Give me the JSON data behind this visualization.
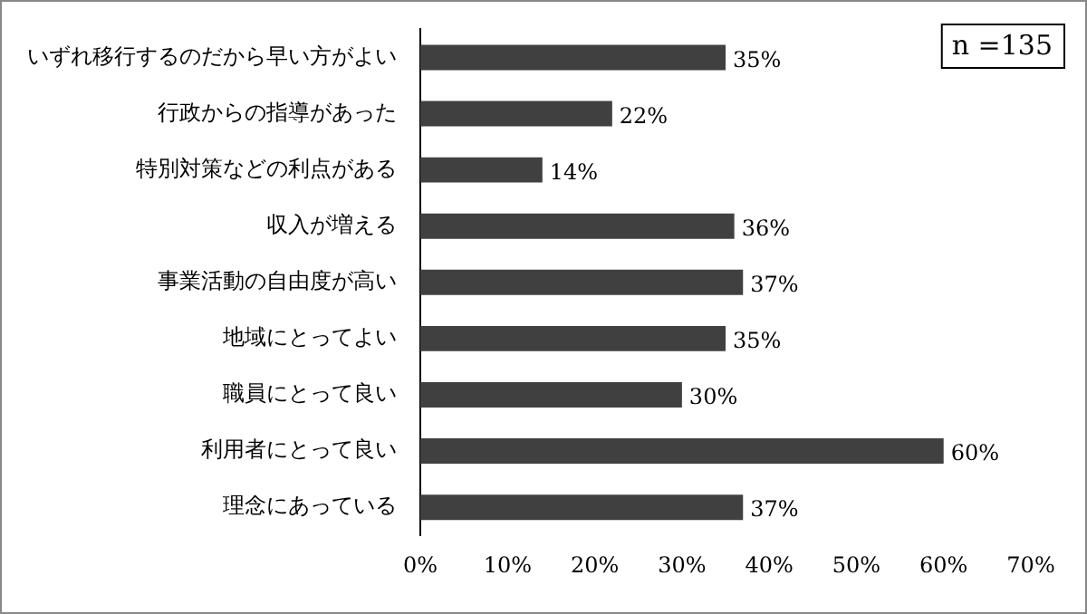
{
  "chart_data": {
    "type": "bar",
    "orientation": "horizontal",
    "categories": [
      "いずれ移行するのだから早い方がよい",
      "行政からの指導があった",
      "特別対策などの利点がある",
      "収入が増える",
      "事業活動の自由度が高い",
      "地域にとってよい",
      "職員にとって良い",
      "利用者にとって良い",
      "理念にあっている"
    ],
    "values": [
      35,
      22,
      14,
      36,
      37,
      35,
      30,
      60,
      37
    ],
    "value_labels": [
      "35%",
      "22%",
      "14%",
      "36%",
      "37%",
      "35%",
      "30%",
      "60%",
      "37%"
    ],
    "color": "#404040",
    "xlim": [
      0,
      70
    ],
    "xticks": [
      {
        "value": 0,
        "label": "0%"
      },
      {
        "value": 10,
        "label": "10%"
      },
      {
        "value": 20,
        "label": "20%"
      },
      {
        "value": 30,
        "label": "30%"
      },
      {
        "value": 40,
        "label": "40%"
      },
      {
        "value": 50,
        "label": "50%"
      },
      {
        "value": 60,
        "label": "60%"
      },
      {
        "value": 70,
        "label": "70%"
      }
    ],
    "grid": false,
    "legend": false,
    "annotations": [
      "n =135"
    ]
  }
}
